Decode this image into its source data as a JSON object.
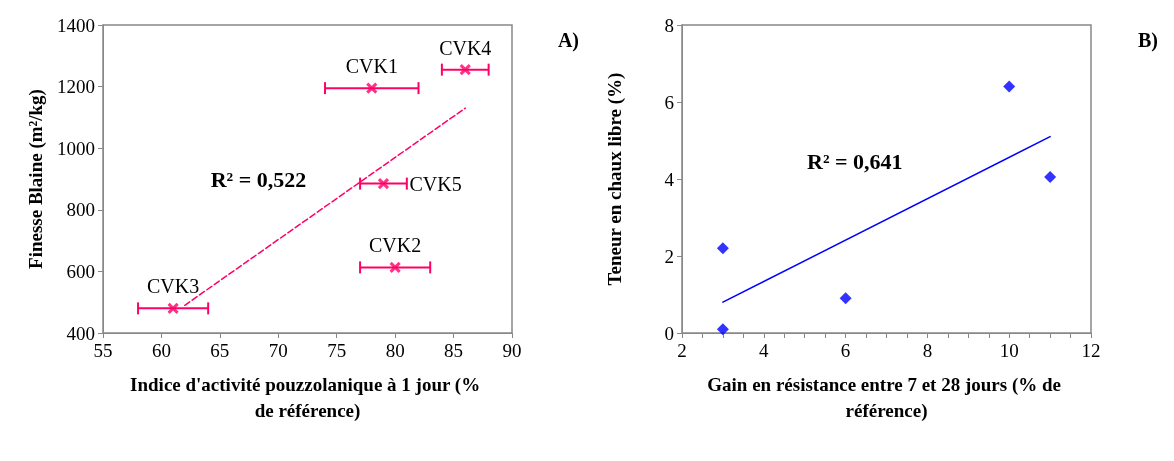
{
  "chart_data": [
    {
      "type": "scatter",
      "xlabel": "Indice d'activité pouzzolanique à 1 jour (% de référence)",
      "ylabel": "Finesse Blaine (m²/kg)",
      "x": [
        78,
        80,
        61,
        86,
        79
      ],
      "xlim": [
        55,
        90
      ],
      "xticks": [
        55,
        60,
        65,
        70,
        75,
        80,
        85,
        90
      ],
      "ylim": [
        400,
        1400
      ],
      "yticks": [
        400,
        600,
        800,
        1000,
        1200,
        1400
      ],
      "series": [
        {
          "color": "#ff0066",
          "values": [
            1195,
            613,
            480,
            1255,
            885
          ],
          "xerrors": [
            4,
            3,
            3,
            2,
            2
          ],
          "marker": "cross"
        },
        {
          "type": "line",
          "color": "#ff0066",
          "x": [
            62,
            86
          ],
          "values": [
            490,
            1130
          ],
          "line_style": "dashed"
        }
      ],
      "annotations": [
        {
          "text": "CVK1",
          "x": 78,
          "y": 1195
        },
        {
          "text": "CVK2",
          "x": 80,
          "y": 613
        },
        {
          "text": "CVK3",
          "x": 61,
          "y": 480
        },
        {
          "text": "CVK4",
          "x": 86,
          "y": 1255
        },
        {
          "text": "CVK5",
          "x": 79,
          "y": 885
        },
        "R² = 0,522",
        "A)"
      ],
      "grid": false
    },
    {
      "type": "scatter",
      "xlabel": "Gain en résistance entre 7 et 28 jours (% de référence)",
      "ylabel": "Teneur en chaux libre (%)",
      "x": [
        3,
        3,
        6,
        10,
        11
      ],
      "xlim": [
        2,
        12
      ],
      "xticks": [
        2,
        {
          "value": 2.5,
          "label": null
        },
        {
          "value": 3,
          "label": null
        },
        {
          "value": 3.5,
          "label": null
        },
        4,
        {
          "value": 4.5,
          "label": null
        },
        {
          "value": 5,
          "label": null
        },
        {
          "value": 5.5,
          "label": null
        },
        6,
        {
          "value": 6.5,
          "label": null
        },
        {
          "value": 7,
          "label": null
        },
        {
          "value": 7.5,
          "label": null
        },
        8,
        {
          "value": 8.5,
          "label": null
        },
        {
          "value": 9,
          "label": null
        },
        {
          "value": 9.5,
          "label": null
        },
        10,
        {
          "value": 10.5,
          "label": null
        },
        {
          "value": 11,
          "label": null
        },
        {
          "value": 11.5,
          "label": null
        },
        12
      ],
      "ylim": [
        0,
        8
      ],
      "yticks": [
        0,
        2,
        4,
        6,
        8
      ],
      "series": [
        {
          "color": "#0000ff",
          "values": [
            2.2,
            0.1,
            0.9,
            6.4,
            4.05
          ],
          "marker": "diamond"
        },
        {
          "type": "line",
          "color": "#0000ff",
          "x": [
            3,
            11
          ],
          "values": [
            0.8,
            5.1
          ],
          "line_style": "solid"
        }
      ],
      "annotations": [
        "R² = 0,641",
        "B)"
      ],
      "grid": false
    }
  ]
}
